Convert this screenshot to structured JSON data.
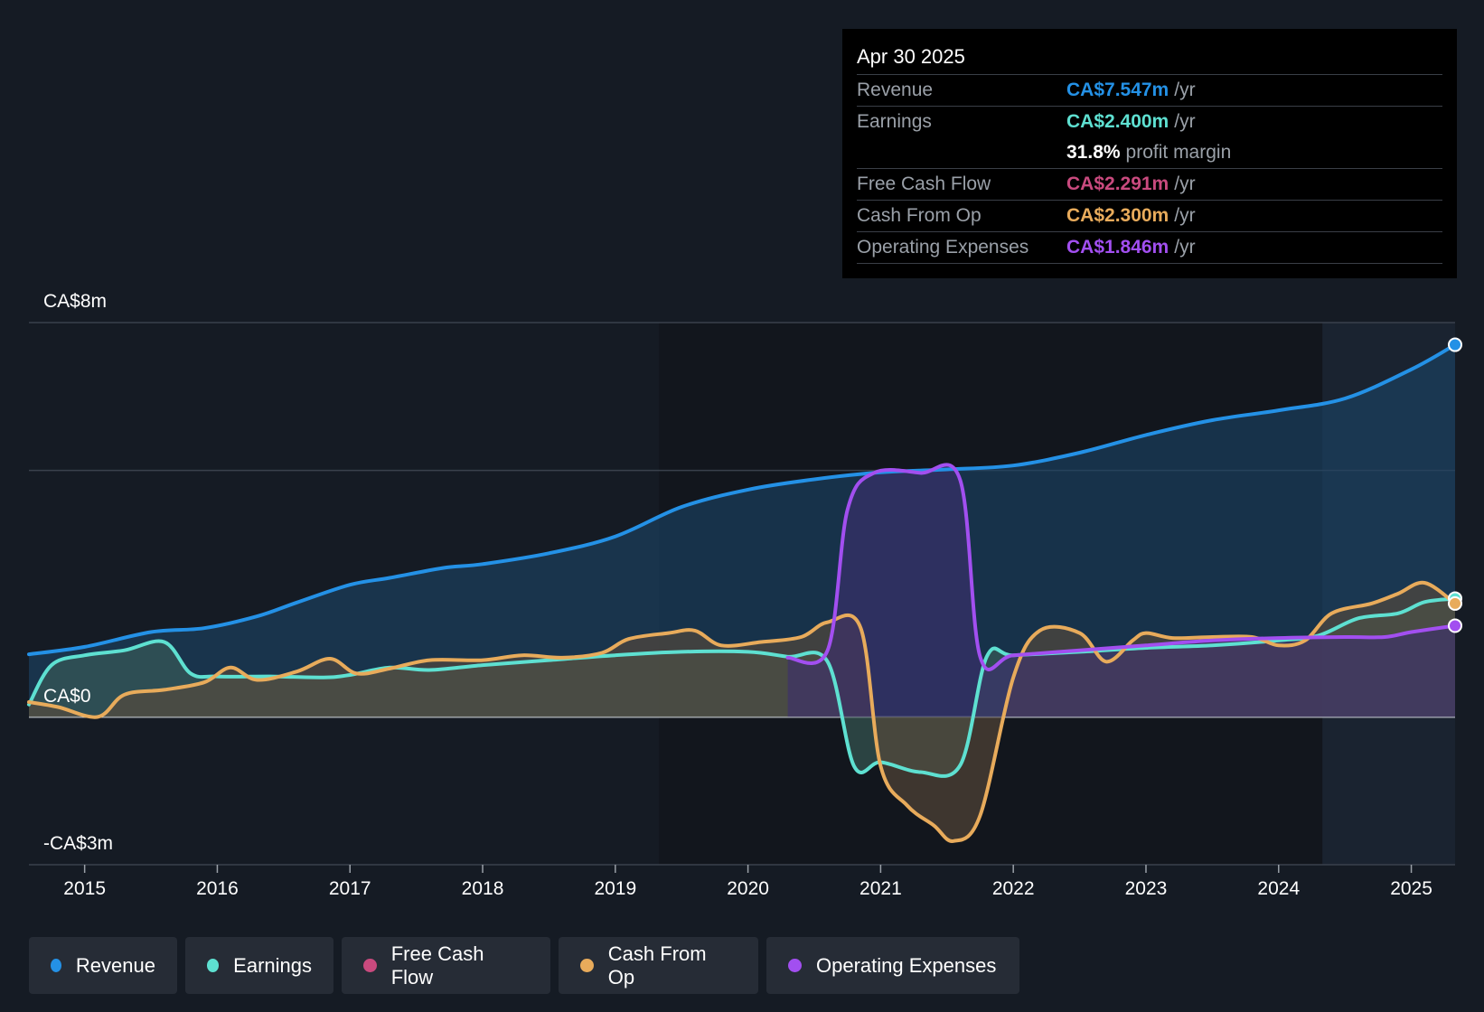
{
  "chart_data": {
    "type": "area",
    "title": "",
    "y_axis": {
      "top_label": "CA$8m",
      "zero_label": "CA$0",
      "bottom_label": "-CA$3m",
      "ylim": [
        -3,
        8
      ],
      "gridlines": [
        8,
        5,
        0,
        -3
      ]
    },
    "x_axis": {
      "ticks": [
        "2015",
        "2016",
        "2017",
        "2018",
        "2019",
        "2020",
        "2021",
        "2022",
        "2023",
        "2024",
        "2025"
      ],
      "xlim": [
        2014.58,
        2025.33
      ]
    },
    "highlight_start": 2024.33,
    "series": [
      {
        "name": "Revenue",
        "color": "#2491e6",
        "fill": "#1c4466",
        "points": [
          [
            2014.58,
            1.27
          ],
          [
            2015.0,
            1.42
          ],
          [
            2015.5,
            1.72
          ],
          [
            2015.9,
            1.8
          ],
          [
            2016.3,
            2.04
          ],
          [
            2016.6,
            2.32
          ],
          [
            2017.0,
            2.68
          ],
          [
            2017.3,
            2.82
          ],
          [
            2017.7,
            3.02
          ],
          [
            2018.0,
            3.1
          ],
          [
            2018.5,
            3.32
          ],
          [
            2019.0,
            3.66
          ],
          [
            2019.5,
            4.26
          ],
          [
            2020.0,
            4.61
          ],
          [
            2020.5,
            4.82
          ],
          [
            2021.0,
            4.96
          ],
          [
            2021.5,
            5.02
          ],
          [
            2022.0,
            5.1
          ],
          [
            2022.5,
            5.36
          ],
          [
            2023.0,
            5.72
          ],
          [
            2023.5,
            6.02
          ],
          [
            2024.0,
            6.22
          ],
          [
            2024.5,
            6.46
          ],
          [
            2025.0,
            7.05
          ],
          [
            2025.33,
            7.55
          ]
        ]
      },
      {
        "name": "Earnings",
        "color": "#5ee0d1",
        "fill": "#3b6058",
        "points": [
          [
            2014.58,
            0.25
          ],
          [
            2014.75,
            1.05
          ],
          [
            2015.0,
            1.25
          ],
          [
            2015.3,
            1.35
          ],
          [
            2015.6,
            1.52
          ],
          [
            2015.8,
            0.88
          ],
          [
            2016.0,
            0.82
          ],
          [
            2016.4,
            0.82
          ],
          [
            2016.8,
            0.8
          ],
          [
            2017.0,
            0.85
          ],
          [
            2017.3,
            1.0
          ],
          [
            2017.6,
            0.95
          ],
          [
            2018.0,
            1.05
          ],
          [
            2018.5,
            1.15
          ],
          [
            2019.0,
            1.25
          ],
          [
            2019.5,
            1.32
          ],
          [
            2020.0,
            1.32
          ],
          [
            2020.3,
            1.22
          ],
          [
            2020.6,
            1.12
          ],
          [
            2020.8,
            -1.0
          ],
          [
            2021.0,
            -0.92
          ],
          [
            2021.3,
            -1.12
          ],
          [
            2021.6,
            -0.98
          ],
          [
            2021.8,
            1.22
          ],
          [
            2022.0,
            1.25
          ],
          [
            2022.5,
            1.32
          ],
          [
            2023.0,
            1.4
          ],
          [
            2023.5,
            1.45
          ],
          [
            2024.0,
            1.55
          ],
          [
            2024.3,
            1.65
          ],
          [
            2024.6,
            2.0
          ],
          [
            2024.9,
            2.1
          ],
          [
            2025.1,
            2.33
          ],
          [
            2025.33,
            2.4
          ]
        ]
      },
      {
        "name": "Free Cash Flow",
        "color": "#c94a7e",
        "fill": "#6e2a3e",
        "points": []
      },
      {
        "name": "Cash From Op",
        "color": "#e8ab5b",
        "fill": "#5a4a3a",
        "points": [
          [
            2014.58,
            0.3
          ],
          [
            2014.8,
            0.2
          ],
          [
            2015.1,
            0.0
          ],
          [
            2015.3,
            0.45
          ],
          [
            2015.6,
            0.55
          ],
          [
            2015.9,
            0.7
          ],
          [
            2016.1,
            1.0
          ],
          [
            2016.3,
            0.75
          ],
          [
            2016.6,
            0.92
          ],
          [
            2016.85,
            1.18
          ],
          [
            2017.05,
            0.88
          ],
          [
            2017.3,
            0.98
          ],
          [
            2017.6,
            1.15
          ],
          [
            2018.0,
            1.15
          ],
          [
            2018.3,
            1.25
          ],
          [
            2018.6,
            1.2
          ],
          [
            2018.9,
            1.3
          ],
          [
            2019.1,
            1.58
          ],
          [
            2019.4,
            1.7
          ],
          [
            2019.6,
            1.75
          ],
          [
            2019.8,
            1.45
          ],
          [
            2020.1,
            1.52
          ],
          [
            2020.4,
            1.62
          ],
          [
            2020.6,
            1.92
          ],
          [
            2020.85,
            1.8
          ],
          [
            2021.0,
            -1.0
          ],
          [
            2021.2,
            -1.8
          ],
          [
            2021.4,
            -2.2
          ],
          [
            2021.55,
            -2.52
          ],
          [
            2021.75,
            -2.0
          ],
          [
            2022.0,
            0.8
          ],
          [
            2022.2,
            1.75
          ],
          [
            2022.5,
            1.7
          ],
          [
            2022.7,
            1.12
          ],
          [
            2022.9,
            1.55
          ],
          [
            2023.0,
            1.7
          ],
          [
            2023.2,
            1.6
          ],
          [
            2023.5,
            1.62
          ],
          [
            2023.8,
            1.62
          ],
          [
            2024.0,
            1.45
          ],
          [
            2024.2,
            1.55
          ],
          [
            2024.4,
            2.1
          ],
          [
            2024.7,
            2.3
          ],
          [
            2024.9,
            2.5
          ],
          [
            2025.1,
            2.72
          ],
          [
            2025.33,
            2.3
          ]
        ]
      },
      {
        "name": "Operating Expenses",
        "color": "#a24ff0",
        "fill": "#3d2f6e",
        "points": [
          [
            2020.3,
            1.2
          ],
          [
            2020.6,
            1.35
          ],
          [
            2020.75,
            4.2
          ],
          [
            2020.95,
            4.95
          ],
          [
            2021.3,
            4.95
          ],
          [
            2021.6,
            4.8
          ],
          [
            2021.75,
            1.22
          ],
          [
            2022.0,
            1.25
          ],
          [
            2022.5,
            1.35
          ],
          [
            2023.0,
            1.45
          ],
          [
            2023.5,
            1.55
          ],
          [
            2024.0,
            1.6
          ],
          [
            2024.5,
            1.62
          ],
          [
            2024.8,
            1.62
          ],
          [
            2025.0,
            1.72
          ],
          [
            2025.33,
            1.85
          ]
        ]
      }
    ],
    "tooltip": {
      "date": "Apr 30 2025",
      "rows": [
        {
          "label": "Revenue",
          "value": "CA$7.547m",
          "unit": "/yr",
          "color": "#2491e6"
        },
        {
          "label": "Earnings",
          "value": "CA$2.400m",
          "unit": "/yr",
          "color": "#5ee0d1"
        },
        {
          "label": "",
          "value": "31.8%",
          "unit": "profit margin",
          "color": "#ffffff"
        },
        {
          "label": "Free Cash Flow",
          "value": "CA$2.291m",
          "unit": "/yr",
          "color": "#c94a7e"
        },
        {
          "label": "Cash From Op",
          "value": "CA$2.300m",
          "unit": "/yr",
          "color": "#e8ab5b"
        },
        {
          "label": "Operating Expenses",
          "value": "CA$1.846m",
          "unit": "/yr",
          "color": "#a24ff0"
        }
      ]
    },
    "legend": [
      {
        "label": "Revenue",
        "color": "#2491e6"
      },
      {
        "label": "Earnings",
        "color": "#5ee0d1"
      },
      {
        "label": "Free Cash Flow",
        "color": "#c94a7e"
      },
      {
        "label": "Cash From Op",
        "color": "#e8ab5b"
      },
      {
        "label": "Operating Expenses",
        "color": "#a24ff0"
      }
    ]
  }
}
